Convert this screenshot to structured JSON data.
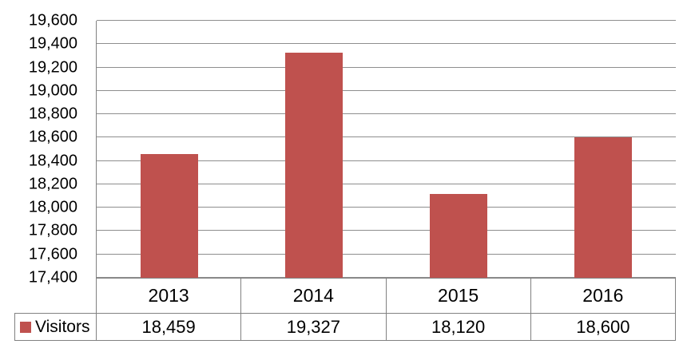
{
  "chart_data": {
    "type": "bar",
    "title": "",
    "categories": [
      "2013",
      "2014",
      "2015",
      "2016"
    ],
    "series": [
      {
        "name": "Visitors",
        "values": [
          18459,
          19327,
          18120,
          18600
        ]
      }
    ],
    "values_formatted": [
      "18,459",
      "19,327",
      "18,120",
      "18,600"
    ],
    "xlabel": "",
    "ylabel": "",
    "ylim": [
      17400,
      19600
    ],
    "ytick_step": 200,
    "ytick_labels": [
      "17,400",
      "17,600",
      "17,800",
      "18,000",
      "18,200",
      "18,400",
      "18,600",
      "18,800",
      "19,000",
      "19,200",
      "19,400",
      "19,600"
    ],
    "grid": true,
    "legend_position": "bottom-table"
  },
  "colors": {
    "bar": "#BF514E",
    "gridline": "#8e8e8e",
    "border": "#818181",
    "text": "#000000",
    "background": "#ffffff"
  }
}
